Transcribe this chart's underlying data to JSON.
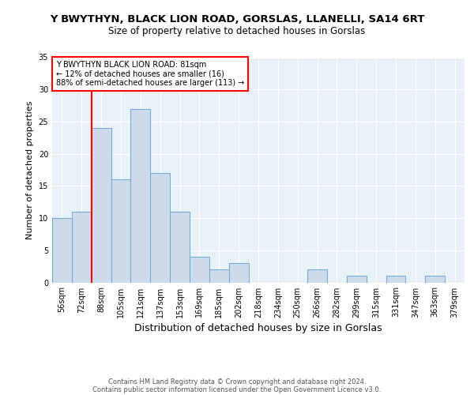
{
  "title": "Y BWYTHYN, BLACK LION ROAD, GORSLAS, LLANELLI, SA14 6RT",
  "subtitle": "Size of property relative to detached houses in Gorslas",
  "xlabel": "Distribution of detached houses by size in Gorslas",
  "ylabel": "Number of detached properties",
  "categories": [
    "56sqm",
    "72sqm",
    "88sqm",
    "105sqm",
    "121sqm",
    "137sqm",
    "153sqm",
    "169sqm",
    "185sqm",
    "202sqm",
    "218sqm",
    "234sqm",
    "250sqm",
    "266sqm",
    "282sqm",
    "299sqm",
    "315sqm",
    "331sqm",
    "347sqm",
    "363sqm",
    "379sqm"
  ],
  "values": [
    10,
    11,
    24,
    16,
    27,
    17,
    11,
    4,
    2,
    3,
    0,
    0,
    0,
    2,
    0,
    1,
    0,
    1,
    0,
    1,
    0
  ],
  "bar_color": "#ccdaeb",
  "bar_edge_color": "#6aaad4",
  "red_line_x": 1.5,
  "annotation_text": "Y BWYTHYN BLACK LION ROAD: 81sqm\n← 12% of detached houses are smaller (16)\n88% of semi-detached houses are larger (113) →",
  "ylim": [
    0,
    35
  ],
  "yticks": [
    0,
    5,
    10,
    15,
    20,
    25,
    30,
    35
  ],
  "background_color": "#e8f0f8",
  "footer_line1": "Contains HM Land Registry data © Crown copyright and database right 2024.",
  "footer_line2": "Contains public sector information licensed under the Open Government Licence v3.0.",
  "title_fontsize": 9.5,
  "subtitle_fontsize": 8.5,
  "xlabel_fontsize": 9,
  "ylabel_fontsize": 8,
  "tick_fontsize": 7,
  "annotation_fontsize": 7,
  "footer_fontsize": 6
}
